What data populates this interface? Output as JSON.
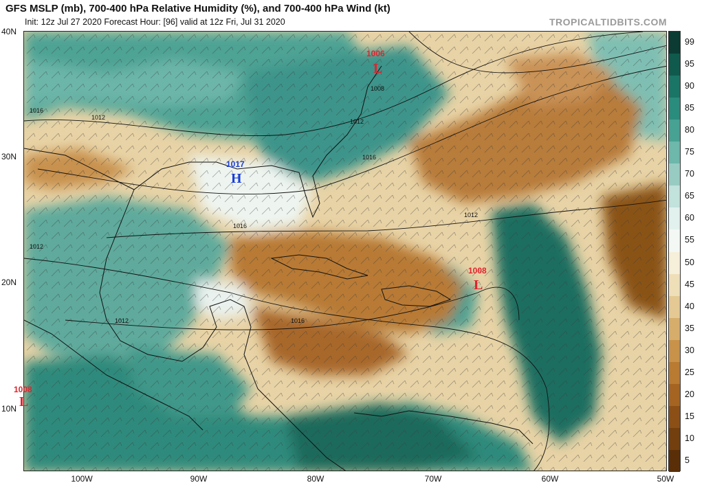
{
  "header": {
    "title": "GFS MSLP (mb), 700-400 hPa Relative Humidity (%), and 700-400 hPa Wind (kt)",
    "subtitle": "Init: 12z Jul 27 2020   Forecast Hour: [96]   valid at 12z Fri, Jul 31 2020",
    "credit": "TROPICALTIDBITS.COM"
  },
  "axes": {
    "lat_labels": [
      "40N",
      "30N",
      "20N",
      "10N"
    ],
    "lon_labels": [
      "100W",
      "90W",
      "80W",
      "70W",
      "60W",
      "50W"
    ]
  },
  "pressure_centers": [
    {
      "type": "H",
      "label": "H",
      "value": "1017",
      "color": "#1a3fd6"
    },
    {
      "type": "L",
      "label": "L",
      "value": "1006",
      "color": "#e0242e"
    },
    {
      "type": "L",
      "label": "L",
      "value": "1008",
      "color": "#e0242e"
    },
    {
      "type": "L",
      "label": "L",
      "value": "1008",
      "color": "#e0242e"
    }
  ],
  "isobar_labels": [
    "1016",
    "1012",
    "1008",
    "1012",
    "1016",
    "1016",
    "1012",
    "1012",
    "1012",
    "1016"
  ],
  "colorbar": {
    "labels": [
      "99",
      "95",
      "90",
      "85",
      "80",
      "75",
      "70",
      "65",
      "60",
      "55",
      "50",
      "45",
      "40",
      "35",
      "30",
      "25",
      "20",
      "15",
      "10",
      "5"
    ],
    "colors": [
      "#0b3b33",
      "#0f5a4d",
      "#1a7566",
      "#2a8c7d",
      "#47a294",
      "#6db7ab",
      "#98ccc3",
      "#c2e2dc",
      "#e2f1ee",
      "#f4f8f5",
      "#f6efd9",
      "#efdfb8",
      "#e4c994",
      "#d6ad6b",
      "#c8924a",
      "#b97a32",
      "#a66422",
      "#8c5016",
      "#733f0e",
      "#5a2f08"
    ]
  }
}
